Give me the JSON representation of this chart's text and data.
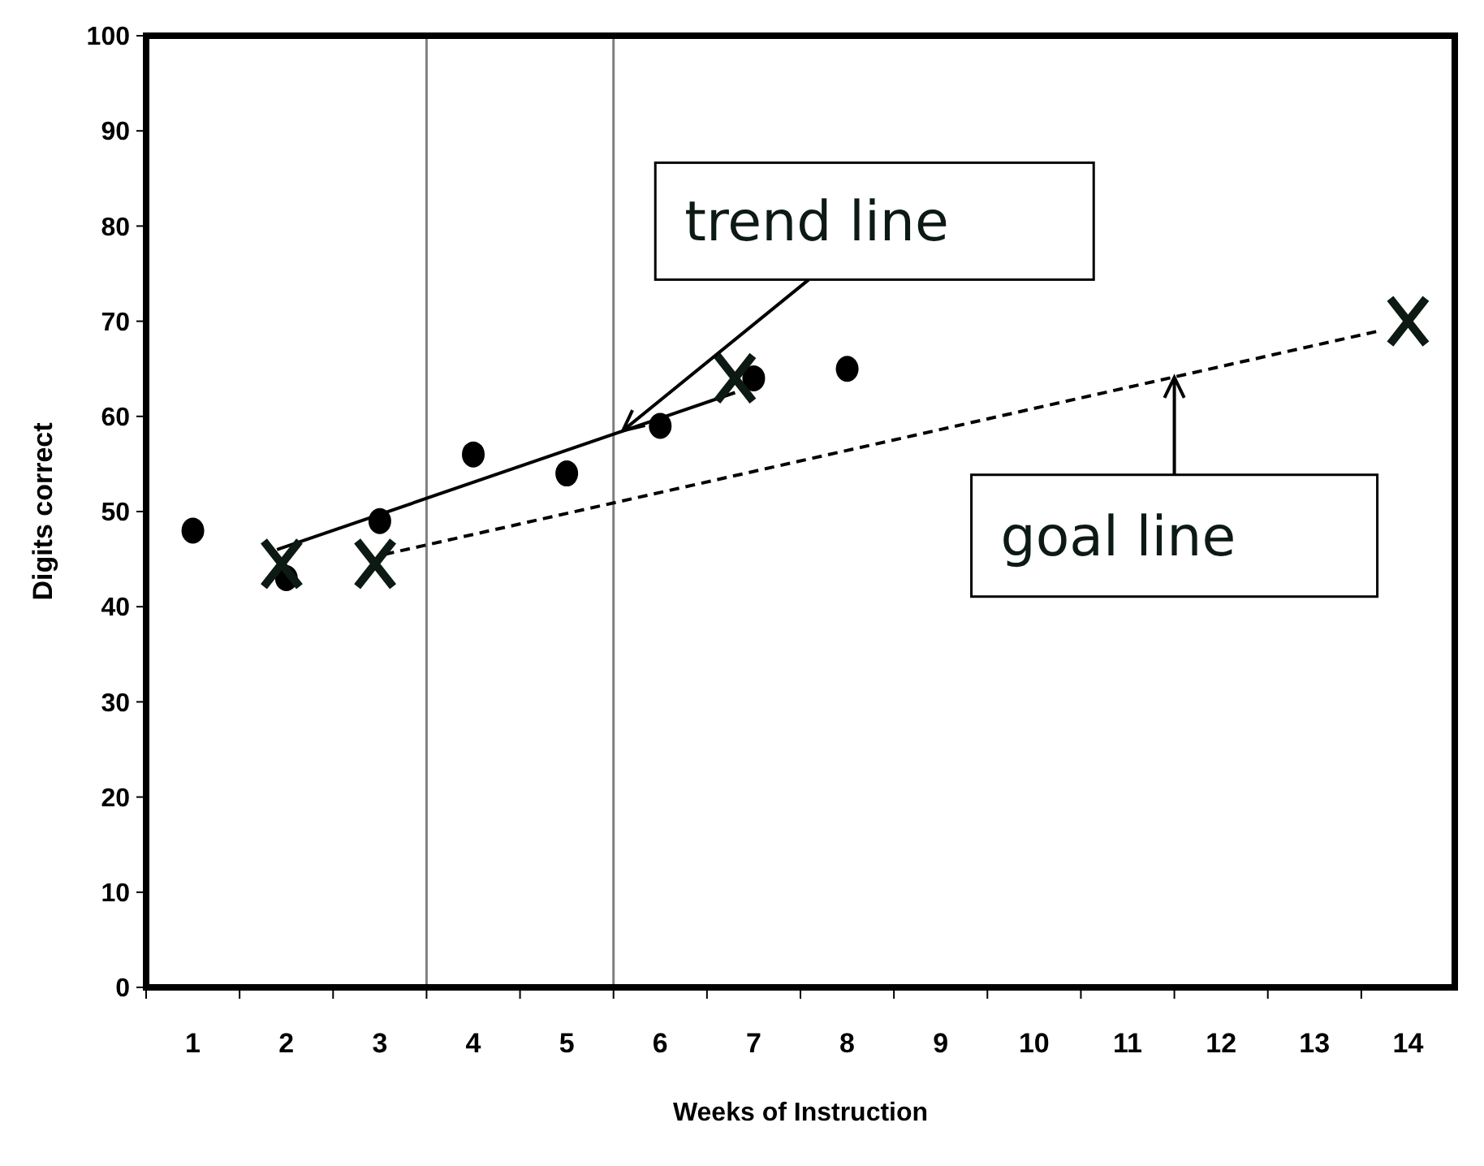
{
  "chart_data": {
    "type": "scatter",
    "xlabel": "Weeks of Instruction",
    "ylabel": "Digits correct",
    "xlim": [
      0.5,
      14.5
    ],
    "ylim": [
      0,
      100
    ],
    "xticks": [
      {
        "value": 0.5,
        "label": null
      },
      {
        "value": 1,
        "label": "1"
      },
      {
        "value": 1.5,
        "label": null
      },
      {
        "value": 2,
        "label": "2"
      },
      {
        "value": 2.5,
        "label": null
      },
      {
        "value": 3,
        "label": "3"
      },
      {
        "value": 3.5,
        "label": null
      },
      {
        "value": 4,
        "label": "4"
      },
      {
        "value": 4.5,
        "label": null
      },
      {
        "value": 5,
        "label": "5"
      },
      {
        "value": 5.5,
        "label": null
      },
      {
        "value": 6,
        "label": "6"
      },
      {
        "value": 6.5,
        "label": null
      },
      {
        "value": 7,
        "label": "7"
      },
      {
        "value": 7.5,
        "label": null
      },
      {
        "value": 8,
        "label": "8"
      },
      {
        "value": 8.5,
        "label": null
      },
      {
        "value": 9,
        "label": "9"
      },
      {
        "value": 9.5,
        "label": null
      },
      {
        "value": 10,
        "label": "10"
      },
      {
        "value": 10.5,
        "label": null
      },
      {
        "value": 11,
        "label": "11"
      },
      {
        "value": 11.5,
        "label": null
      },
      {
        "value": 12,
        "label": "12"
      },
      {
        "value": 12.5,
        "label": null
      },
      {
        "value": 13,
        "label": "13"
      },
      {
        "value": 13.5,
        "label": null
      },
      {
        "value": 14,
        "label": "14"
      }
    ],
    "yticks": [
      0,
      10,
      20,
      30,
      40,
      50,
      60,
      70,
      80,
      90,
      100
    ],
    "grid": false,
    "series": [
      {
        "marker": "circle",
        "color": "#000000",
        "x": [
          1,
          2,
          3,
          4,
          5,
          6,
          7,
          8
        ],
        "values": [
          48,
          43,
          49,
          56,
          54,
          59,
          64,
          65
        ]
      },
      {
        "type": "line",
        "marker": "none",
        "line_style": "solid",
        "color": "#000000",
        "x": [
          1.9,
          6.8
        ],
        "values": [
          46,
          62.5
        ]
      },
      {
        "type": "line",
        "marker": "none",
        "line_style": "dashed",
        "color": "#000000",
        "x": [
          3.05,
          13.7
        ],
        "values": [
          45.5,
          69
        ]
      },
      {
        "marker": "cross",
        "color": "#0d1a14",
        "x": [
          1.95,
          2.95,
          6.8,
          14
        ],
        "values": [
          44.5,
          44.5,
          64,
          70
        ]
      }
    ],
    "ref_lines": [
      {
        "axis": "x",
        "value": 3.5,
        "color": "#808080"
      },
      {
        "axis": "x",
        "value": 5.5,
        "color": "#808080"
      }
    ],
    "annotations": [
      {
        "text": "trend line",
        "x": 5.6,
        "y": 58.5
      },
      {
        "text": "goal line",
        "x": 11.5,
        "y": 64.1
      }
    ]
  }
}
